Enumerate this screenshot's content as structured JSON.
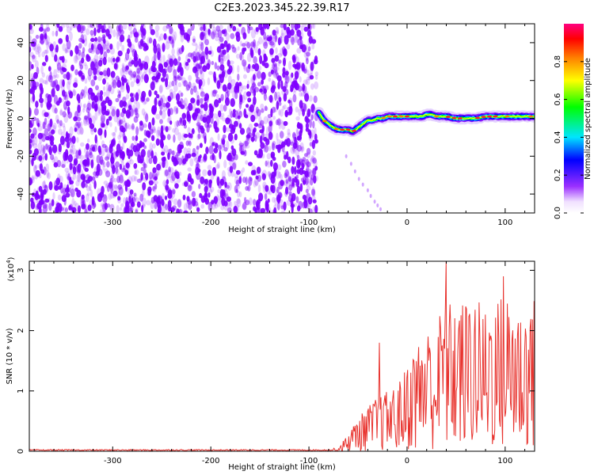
{
  "title": "C2E3.2023.345.22.39.R17",
  "colors": {
    "dots": "#7f00ff",
    "snr_line": "#e8332e",
    "spectrum_scale": [
      "#ffffff",
      "#7f00ff",
      "#0000ff",
      "#00e5ff",
      "#00ff00",
      "#ffff00",
      "#ff8000",
      "#ff0000",
      "#ff0080"
    ]
  },
  "chart_data": [
    {
      "type": "heatmap",
      "name": "spectrogram",
      "title": "C2E3.2023.345.22.39.R17",
      "xlabel": "Height of straight line (km)",
      "ylabel": "Frequency (Hz)",
      "xlim": [
        -385,
        130
      ],
      "ylim": [
        -50,
        50
      ],
      "x_ticks": [
        "-300",
        "-200",
        "-100",
        "0",
        "100"
      ],
      "x_tick_values": [
        -300,
        -200,
        -100,
        0,
        100
      ],
      "y_ticks": [
        "-40",
        "-20",
        "0",
        "20",
        "40"
      ],
      "y_tick_values": [
        -40,
        -20,
        0,
        20,
        40
      ],
      "noise_region_x": [
        -385,
        -92
      ],
      "ridge": {
        "x": [
          -90,
          -85,
          -80,
          -75,
          -70,
          -65,
          -60,
          -55,
          -50,
          -45,
          -40,
          -35,
          -30,
          -25,
          -20,
          -15,
          -10,
          -5,
          0,
          5,
          10,
          15,
          20,
          25,
          30,
          40,
          50,
          60,
          70,
          80,
          90,
          100,
          110,
          120,
          130
        ],
        "y": [
          3,
          -1,
          -3,
          -5,
          -6,
          -6,
          -6,
          -7,
          -5,
          -3,
          -1,
          -1,
          0,
          0,
          1,
          1,
          1,
          1,
          1,
          1,
          1,
          1,
          2,
          2,
          1,
          1,
          0,
          0,
          0,
          1,
          1,
          1,
          1,
          1,
          1
        ]
      },
      "tail": {
        "x": [
          -62,
          -57,
          -53,
          -49,
          -45,
          -40,
          -37,
          -33,
          -30,
          -27
        ],
        "y": [
          -20,
          -24,
          -28,
          -32,
          -35,
          -38,
          -41,
          -44,
          -46,
          -48
        ]
      },
      "colorbar": {
        "label": "Normalized spectral amplitude",
        "range": [
          0,
          1
        ],
        "ticks": [
          "0.0",
          "0.2",
          "0.4",
          "0.6",
          "0.8"
        ],
        "tick_values": [
          0,
          0.2,
          0.4,
          0.6,
          0.8
        ]
      }
    },
    {
      "type": "line",
      "name": "snr",
      "xlabel": "Height of straight line (km)",
      "ylabel": "SNR (10 * v/v)",
      "multiplier_label": "(x10",
      "multiplier_exp": "4",
      "multiplier_close": ")",
      "xlim": [
        -385,
        130
      ],
      "ylim": [
        0,
        3.15
      ],
      "x_ticks": [
        "-300",
        "-200",
        "-100",
        "0",
        "100"
      ],
      "x_tick_values": [
        -300,
        -200,
        -100,
        0,
        100
      ],
      "y_ticks": [
        "0",
        "1",
        "2",
        "3"
      ],
      "y_tick_values": [
        0,
        1,
        2,
        3
      ],
      "envelope": {
        "x": [
          -385,
          -70,
          -60,
          -50,
          -40,
          -30,
          -20,
          -10,
          -5,
          0,
          10,
          20,
          30,
          40,
          50,
          60,
          70,
          80,
          90,
          100,
          110,
          120,
          130
        ],
        "y": [
          0.02,
          0.05,
          0.3,
          0.55,
          0.75,
          0.9,
          1.0,
          1.1,
          1.25,
          1.45,
          1.8,
          2.0,
          2.2,
          2.5,
          2.45,
          2.5,
          2.55,
          2.4,
          2.5,
          2.65,
          2.45,
          2.35,
          2.55
        ]
      },
      "peaks": [
        {
          "x": -28,
          "y": 1.8
        },
        {
          "x": 40,
          "y": 3.15
        },
        {
          "x": 98,
          "y": 2.9
        }
      ]
    }
  ]
}
